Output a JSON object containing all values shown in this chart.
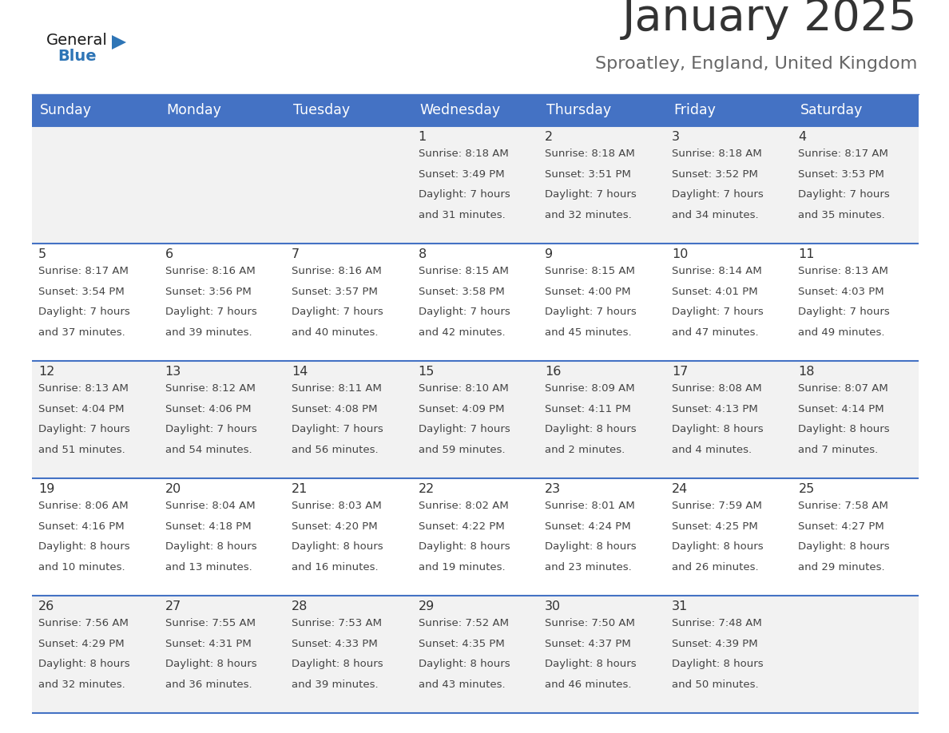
{
  "title": "January 2025",
  "subtitle": "Sproatley, England, United Kingdom",
  "days_of_week": [
    "Sunday",
    "Monday",
    "Tuesday",
    "Wednesday",
    "Thursday",
    "Friday",
    "Saturday"
  ],
  "header_bg_color": "#4472C4",
  "header_text_color": "#FFFFFF",
  "row_bg_even": "#F2F2F2",
  "row_bg_odd": "#FFFFFF",
  "row_separator_color": "#4472C4",
  "title_color": "#333333",
  "subtitle_color": "#666666",
  "day_number_color": "#333333",
  "cell_text_color": "#444444",
  "calendar": [
    [
      {
        "day": null
      },
      {
        "day": null
      },
      {
        "day": null
      },
      {
        "day": 1,
        "sunrise": "8:18 AM",
        "sunset": "3:49 PM",
        "daylight": "7 hours and 31 minutes."
      },
      {
        "day": 2,
        "sunrise": "8:18 AM",
        "sunset": "3:51 PM",
        "daylight": "7 hours and 32 minutes."
      },
      {
        "day": 3,
        "sunrise": "8:18 AM",
        "sunset": "3:52 PM",
        "daylight": "7 hours and 34 minutes."
      },
      {
        "day": 4,
        "sunrise": "8:17 AM",
        "sunset": "3:53 PM",
        "daylight": "7 hours and 35 minutes."
      }
    ],
    [
      {
        "day": 5,
        "sunrise": "8:17 AM",
        "sunset": "3:54 PM",
        "daylight": "7 hours and 37 minutes."
      },
      {
        "day": 6,
        "sunrise": "8:16 AM",
        "sunset": "3:56 PM",
        "daylight": "7 hours and 39 minutes."
      },
      {
        "day": 7,
        "sunrise": "8:16 AM",
        "sunset": "3:57 PM",
        "daylight": "7 hours and 40 minutes."
      },
      {
        "day": 8,
        "sunrise": "8:15 AM",
        "sunset": "3:58 PM",
        "daylight": "7 hours and 42 minutes."
      },
      {
        "day": 9,
        "sunrise": "8:15 AM",
        "sunset": "4:00 PM",
        "daylight": "7 hours and 45 minutes."
      },
      {
        "day": 10,
        "sunrise": "8:14 AM",
        "sunset": "4:01 PM",
        "daylight": "7 hours and 47 minutes."
      },
      {
        "day": 11,
        "sunrise": "8:13 AM",
        "sunset": "4:03 PM",
        "daylight": "7 hours and 49 minutes."
      }
    ],
    [
      {
        "day": 12,
        "sunrise": "8:13 AM",
        "sunset": "4:04 PM",
        "daylight": "7 hours and 51 minutes."
      },
      {
        "day": 13,
        "sunrise": "8:12 AM",
        "sunset": "4:06 PM",
        "daylight": "7 hours and 54 minutes."
      },
      {
        "day": 14,
        "sunrise": "8:11 AM",
        "sunset": "4:08 PM",
        "daylight": "7 hours and 56 minutes."
      },
      {
        "day": 15,
        "sunrise": "8:10 AM",
        "sunset": "4:09 PM",
        "daylight": "7 hours and 59 minutes."
      },
      {
        "day": 16,
        "sunrise": "8:09 AM",
        "sunset": "4:11 PM",
        "daylight": "8 hours and 2 minutes."
      },
      {
        "day": 17,
        "sunrise": "8:08 AM",
        "sunset": "4:13 PM",
        "daylight": "8 hours and 4 minutes."
      },
      {
        "day": 18,
        "sunrise": "8:07 AM",
        "sunset": "4:14 PM",
        "daylight": "8 hours and 7 minutes."
      }
    ],
    [
      {
        "day": 19,
        "sunrise": "8:06 AM",
        "sunset": "4:16 PM",
        "daylight": "8 hours and 10 minutes."
      },
      {
        "day": 20,
        "sunrise": "8:04 AM",
        "sunset": "4:18 PM",
        "daylight": "8 hours and 13 minutes."
      },
      {
        "day": 21,
        "sunrise": "8:03 AM",
        "sunset": "4:20 PM",
        "daylight": "8 hours and 16 minutes."
      },
      {
        "day": 22,
        "sunrise": "8:02 AM",
        "sunset": "4:22 PM",
        "daylight": "8 hours and 19 minutes."
      },
      {
        "day": 23,
        "sunrise": "8:01 AM",
        "sunset": "4:24 PM",
        "daylight": "8 hours and 23 minutes."
      },
      {
        "day": 24,
        "sunrise": "7:59 AM",
        "sunset": "4:25 PM",
        "daylight": "8 hours and 26 minutes."
      },
      {
        "day": 25,
        "sunrise": "7:58 AM",
        "sunset": "4:27 PM",
        "daylight": "8 hours and 29 minutes."
      }
    ],
    [
      {
        "day": 26,
        "sunrise": "7:56 AM",
        "sunset": "4:29 PM",
        "daylight": "8 hours and 32 minutes."
      },
      {
        "day": 27,
        "sunrise": "7:55 AM",
        "sunset": "4:31 PM",
        "daylight": "8 hours and 36 minutes."
      },
      {
        "day": 28,
        "sunrise": "7:53 AM",
        "sunset": "4:33 PM",
        "daylight": "8 hours and 39 minutes."
      },
      {
        "day": 29,
        "sunrise": "7:52 AM",
        "sunset": "4:35 PM",
        "daylight": "8 hours and 43 minutes."
      },
      {
        "day": 30,
        "sunrise": "7:50 AM",
        "sunset": "4:37 PM",
        "daylight": "8 hours and 46 minutes."
      },
      {
        "day": 31,
        "sunrise": "7:48 AM",
        "sunset": "4:39 PM",
        "daylight": "8 hours and 50 minutes."
      },
      {
        "day": null
      }
    ]
  ]
}
